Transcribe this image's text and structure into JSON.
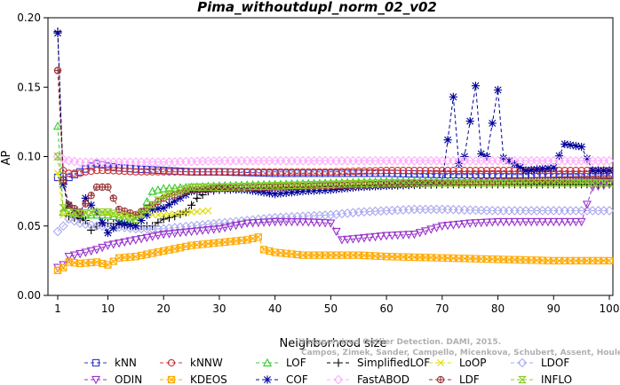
{
  "chart_data": {
    "type": "line",
    "title": "Pima_withoutdupl_norm_02_v02",
    "xlabel": "Neighborhood size",
    "ylabel": "AP",
    "xlim": [
      1,
      100
    ],
    "ylim": [
      0.0,
      0.2
    ],
    "x_ticks": [
      "1",
      "10",
      "20",
      "30",
      "40",
      "50",
      "60",
      "70",
      "80",
      "90",
      "100"
    ],
    "y_ticks": [
      "0.00",
      "0.05",
      "0.10",
      "0.15",
      "0.20"
    ],
    "grid": false,
    "legend_position": "bottom",
    "watermark": "Campos, Zimek, Sander, Campello, Micenkova, Schubert, Assent, Houle",
    "watermark_line1": "Unsupervised Outlier Detection. DAMI, 2015.",
    "series": [
      {
        "name": "kNN",
        "color": "#3333cc",
        "marker": "square",
        "points": [
          [
            1,
            0.085
          ],
          [
            2,
            0.083
          ],
          [
            3,
            0.085
          ],
          [
            4,
            0.087
          ],
          [
            5,
            0.089
          ],
          [
            6,
            0.091
          ],
          [
            7,
            0.093
          ],
          [
            8,
            0.095
          ],
          [
            9,
            0.094
          ],
          [
            10,
            0.093
          ],
          [
            12,
            0.092
          ],
          [
            15,
            0.091
          ],
          [
            20,
            0.09
          ],
          [
            25,
            0.089
          ],
          [
            30,
            0.089
          ],
          [
            40,
            0.088
          ],
          [
            50,
            0.088
          ],
          [
            60,
            0.088
          ],
          [
            70,
            0.087
          ],
          [
            80,
            0.087
          ],
          [
            90,
            0.087
          ],
          [
            100,
            0.087
          ]
        ]
      },
      {
        "name": "kNNW",
        "color": "#cc3333",
        "marker": "circle",
        "points": [
          [
            1,
            0.162
          ],
          [
            2,
            0.09
          ],
          [
            3,
            0.088
          ],
          [
            4,
            0.088
          ],
          [
            5,
            0.088
          ],
          [
            6,
            0.089
          ],
          [
            8,
            0.09
          ],
          [
            10,
            0.09
          ],
          [
            15,
            0.089
          ],
          [
            20,
            0.089
          ],
          [
            30,
            0.089
          ],
          [
            40,
            0.089
          ],
          [
            50,
            0.089
          ],
          [
            60,
            0.09
          ],
          [
            70,
            0.09
          ],
          [
            80,
            0.09
          ],
          [
            90,
            0.09
          ],
          [
            100,
            0.09
          ]
        ]
      },
      {
        "name": "LOF",
        "color": "#33cc33",
        "marker": "triangle-up",
        "points": [
          [
            1,
            0.122
          ],
          [
            2,
            0.06
          ],
          [
            3,
            0.065
          ],
          [
            4,
            0.06
          ],
          [
            5,
            0.058
          ],
          [
            6,
            0.058
          ],
          [
            8,
            0.058
          ],
          [
            10,
            0.058
          ],
          [
            12,
            0.056
          ],
          [
            14,
            0.054
          ],
          [
            16,
            0.06
          ],
          [
            18,
            0.075
          ],
          [
            20,
            0.077
          ],
          [
            25,
            0.078
          ],
          [
            30,
            0.079
          ],
          [
            40,
            0.08
          ],
          [
            50,
            0.081
          ],
          [
            60,
            0.082
          ],
          [
            70,
            0.082
          ],
          [
            80,
            0.082
          ],
          [
            90,
            0.082
          ],
          [
            100,
            0.082
          ]
        ]
      },
      {
        "name": "SimplifiedLOF",
        "color": "#000000",
        "marker": "plus",
        "points": [
          [
            1,
            0.19
          ],
          [
            2,
            0.083
          ],
          [
            3,
            0.057
          ],
          [
            4,
            0.056
          ],
          [
            5,
            0.055
          ],
          [
            6,
            0.054
          ],
          [
            7,
            0.047
          ],
          [
            8,
            0.05
          ],
          [
            9,
            0.052
          ],
          [
            10,
            0.052
          ],
          [
            12,
            0.051
          ],
          [
            14,
            0.05
          ],
          [
            16,
            0.05
          ],
          [
            18,
            0.05
          ],
          [
            20,
            0.055
          ],
          [
            22,
            0.057
          ],
          [
            24,
            0.06
          ],
          [
            26,
            0.07
          ],
          [
            28,
            0.075
          ],
          [
            30,
            0.076
          ],
          [
            40,
            0.077
          ],
          [
            50,
            0.078
          ],
          [
            60,
            0.079
          ],
          [
            70,
            0.08
          ],
          [
            80,
            0.08
          ],
          [
            90,
            0.08
          ],
          [
            100,
            0.08
          ]
        ]
      },
      {
        "name": "LoOP",
        "color": "#dddd00",
        "marker": "x",
        "points": [
          [
            1,
            0.088
          ],
          [
            2,
            0.058
          ],
          [
            3,
            0.058
          ],
          [
            5,
            0.059
          ],
          [
            8,
            0.06
          ],
          [
            10,
            0.059
          ],
          [
            15,
            0.058
          ],
          [
            20,
            0.058
          ],
          [
            25,
            0.06
          ],
          [
            28,
            0.061
          ]
        ]
      },
      {
        "name": "LDOF",
        "color": "#aaaaee",
        "marker": "diamond",
        "points": [
          [
            1,
            0.046
          ],
          [
            2,
            0.05
          ],
          [
            3,
            0.055
          ],
          [
            5,
            0.052
          ],
          [
            8,
            0.05
          ],
          [
            10,
            0.05
          ],
          [
            15,
            0.048
          ],
          [
            20,
            0.048
          ],
          [
            25,
            0.05
          ],
          [
            30,
            0.052
          ],
          [
            35,
            0.054
          ],
          [
            40,
            0.056
          ],
          [
            45,
            0.057
          ],
          [
            50,
            0.058
          ],
          [
            55,
            0.06
          ],
          [
            60,
            0.061
          ],
          [
            65,
            0.062
          ],
          [
            70,
            0.062
          ],
          [
            80,
            0.061
          ],
          [
            90,
            0.061
          ],
          [
            100,
            0.061
          ]
        ]
      },
      {
        "name": "ODIN",
        "color": "#9933cc",
        "marker": "triangle-down",
        "points": [
          [
            1,
            0.02
          ],
          [
            2,
            0.022
          ],
          [
            3,
            0.028
          ],
          [
            5,
            0.03
          ],
          [
            8,
            0.033
          ],
          [
            10,
            0.036
          ],
          [
            15,
            0.04
          ],
          [
            20,
            0.044
          ],
          [
            25,
            0.046
          ],
          [
            30,
            0.048
          ],
          [
            35,
            0.052
          ],
          [
            40,
            0.053
          ],
          [
            45,
            0.053
          ],
          [
            50,
            0.052
          ],
          [
            52,
            0.04
          ],
          [
            55,
            0.041
          ],
          [
            60,
            0.043
          ],
          [
            65,
            0.044
          ],
          [
            70,
            0.05
          ],
          [
            75,
            0.052
          ],
          [
            80,
            0.053
          ],
          [
            85,
            0.053
          ],
          [
            90,
            0.053
          ],
          [
            95,
            0.053
          ],
          [
            97,
            0.078
          ],
          [
            100,
            0.08
          ]
        ]
      },
      {
        "name": "KDEOS",
        "color": "#ffaa00",
        "marker": "square-cross",
        "points": [
          [
            1,
            0.018
          ],
          [
            2,
            0.02
          ],
          [
            3,
            0.024
          ],
          [
            5,
            0.023
          ],
          [
            8,
            0.024
          ],
          [
            10,
            0.022
          ],
          [
            12,
            0.027
          ],
          [
            15,
            0.028
          ],
          [
            20,
            0.032
          ],
          [
            25,
            0.036
          ],
          [
            30,
            0.038
          ],
          [
            35,
            0.04
          ],
          [
            37,
            0.042
          ],
          [
            38,
            0.033
          ],
          [
            40,
            0.031
          ],
          [
            45,
            0.029
          ],
          [
            50,
            0.029
          ],
          [
            55,
            0.029
          ],
          [
            60,
            0.028
          ],
          [
            70,
            0.027
          ],
          [
            80,
            0.026
          ],
          [
            90,
            0.025
          ],
          [
            100,
            0.025
          ]
        ]
      },
      {
        "name": "COF",
        "color": "#000099",
        "marker": "star",
        "points": [
          [
            1,
            0.189
          ],
          [
            2,
            0.08
          ],
          [
            3,
            0.065
          ],
          [
            5,
            0.058
          ],
          [
            6,
            0.07
          ],
          [
            8,
            0.06
          ],
          [
            10,
            0.045
          ],
          [
            12,
            0.052
          ],
          [
            15,
            0.05
          ],
          [
            18,
            0.062
          ],
          [
            20,
            0.063
          ],
          [
            25,
            0.075
          ],
          [
            30,
            0.077
          ],
          [
            35,
            0.076
          ],
          [
            40,
            0.073
          ],
          [
            45,
            0.075
          ],
          [
            50,
            0.076
          ],
          [
            55,
            0.078
          ],
          [
            60,
            0.079
          ],
          [
            65,
            0.08
          ],
          [
            70,
            0.081
          ],
          [
            72,
            0.143
          ],
          [
            73,
            0.095
          ],
          [
            74,
            0.1
          ],
          [
            76,
            0.151
          ],
          [
            77,
            0.102
          ],
          [
            78,
            0.1
          ],
          [
            80,
            0.148
          ],
          [
            81,
            0.099
          ],
          [
            82,
            0.097
          ],
          [
            85,
            0.09
          ],
          [
            90,
            0.092
          ],
          [
            92,
            0.109
          ],
          [
            95,
            0.107
          ],
          [
            97,
            0.09
          ],
          [
            100,
            0.09
          ]
        ]
      },
      {
        "name": "FastABOD",
        "color": "#ffaaff",
        "marker": "diamond",
        "points": [
          [
            1,
            0.1
          ],
          [
            2,
            0.098
          ],
          [
            3,
            0.097
          ],
          [
            5,
            0.096
          ],
          [
            10,
            0.096
          ],
          [
            20,
            0.096
          ],
          [
            30,
            0.097
          ],
          [
            40,
            0.097
          ],
          [
            50,
            0.097
          ],
          [
            60,
            0.097
          ],
          [
            70,
            0.097
          ],
          [
            80,
            0.097
          ],
          [
            90,
            0.097
          ],
          [
            100,
            0.097
          ]
        ]
      },
      {
        "name": "LDF",
        "color": "#993333",
        "marker": "circle-plus",
        "points": [
          [
            1,
            0.162
          ],
          [
            2,
            0.083
          ],
          [
            3,
            0.065
          ],
          [
            5,
            0.06
          ],
          [
            8,
            0.078
          ],
          [
            10,
            0.078
          ],
          [
            12,
            0.062
          ],
          [
            15,
            0.058
          ],
          [
            20,
            0.07
          ],
          [
            25,
            0.076
          ],
          [
            30,
            0.077
          ],
          [
            40,
            0.078
          ],
          [
            50,
            0.079
          ],
          [
            60,
            0.08
          ],
          [
            70,
            0.081
          ],
          [
            80,
            0.082
          ],
          [
            90,
            0.083
          ],
          [
            100,
            0.084
          ]
        ]
      },
      {
        "name": "INFLO",
        "color": "#88cc22",
        "marker": "hourglass",
        "points": [
          [
            1,
            0.1
          ],
          [
            2,
            0.063
          ],
          [
            3,
            0.06
          ],
          [
            5,
            0.059
          ],
          [
            8,
            0.06
          ],
          [
            10,
            0.06
          ],
          [
            15,
            0.055
          ],
          [
            20,
            0.072
          ],
          [
            25,
            0.078
          ],
          [
            30,
            0.078
          ],
          [
            40,
            0.079
          ],
          [
            50,
            0.08
          ],
          [
            60,
            0.081
          ],
          [
            70,
            0.081
          ],
          [
            80,
            0.081
          ],
          [
            90,
            0.081
          ],
          [
            100,
            0.081
          ]
        ]
      }
    ]
  }
}
